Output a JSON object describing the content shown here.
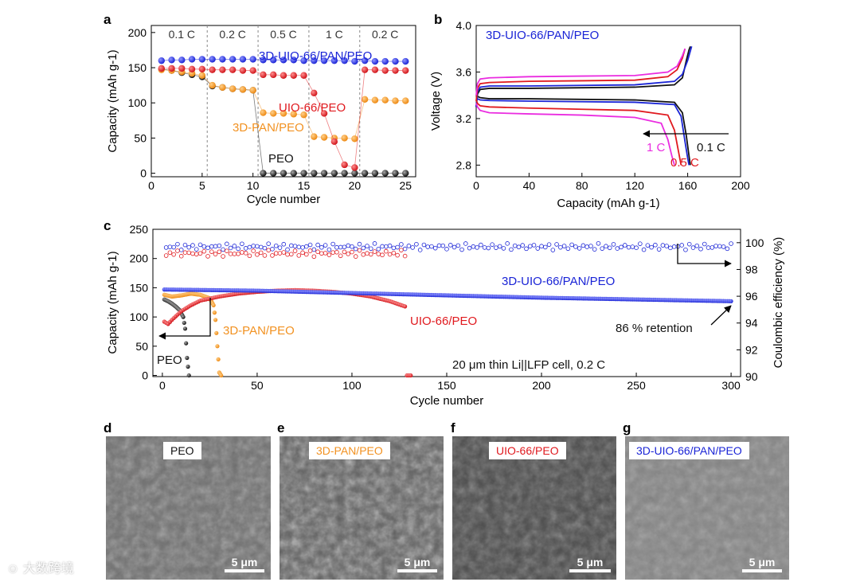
{
  "panel_letters": {
    "a": "a",
    "b": "b",
    "c": "c",
    "d": "d",
    "e": "e",
    "f": "f",
    "g": "g"
  },
  "colors": {
    "blue": "#1a24d6",
    "red": "#e0191e",
    "orange": "#f29222",
    "black": "#111111",
    "magenta": "#ea2ce0"
  },
  "watermark": "大数跨境",
  "chart_data": [
    {
      "id": "a",
      "type": "scatter",
      "xlabel": "Cycle number",
      "ylabel": "Capacity (mAh g-1)",
      "xlim": [
        0,
        26
      ],
      "ylim": [
        -5,
        210
      ],
      "xticks": [
        0,
        5,
        10,
        15,
        20,
        25
      ],
      "yticks": [
        0,
        50,
        100,
        150,
        200
      ],
      "rate_labels": [
        "0.1 C",
        "0.2 C",
        "0.5 C",
        "1 C",
        "0.2 C"
      ],
      "rate_dividers": [
        5.5,
        10.5,
        15.5,
        20.5
      ],
      "series": [
        {
          "name": "3D-UIO-66/PAN/PEO",
          "color": "blue",
          "x": [
            1,
            2,
            3,
            4,
            5,
            6,
            7,
            8,
            9,
            10,
            11,
            12,
            13,
            14,
            15,
            16,
            17,
            18,
            19,
            20,
            21,
            22,
            23,
            24,
            25
          ],
          "values": [
            160,
            161,
            161,
            162,
            162,
            162,
            162,
            162,
            162,
            162,
            161,
            161,
            161,
            161,
            160,
            160,
            160,
            160,
            160,
            159,
            160,
            159,
            159,
            159,
            159
          ]
        },
        {
          "name": "UIO-66/PEO",
          "color": "red",
          "x": [
            1,
            2,
            3,
            4,
            5,
            6,
            7,
            8,
            9,
            10,
            11,
            12,
            13,
            14,
            15,
            16,
            17,
            18,
            19,
            20,
            21,
            22,
            23,
            24,
            25
          ],
          "values": [
            149,
            149,
            149,
            148,
            148,
            147,
            147,
            147,
            146,
            146,
            140,
            140,
            139,
            139,
            139,
            114,
            85,
            45,
            12,
            8,
            147,
            147,
            146,
            146,
            146
          ]
        },
        {
          "name": "3D-PAN/PEO",
          "color": "orange",
          "x": [
            1,
            2,
            3,
            4,
            5,
            6,
            7,
            8,
            9,
            10,
            11,
            12,
            13,
            14,
            15,
            16,
            17,
            18,
            19,
            20,
            21,
            22,
            23,
            24,
            25
          ],
          "values": [
            147,
            146,
            144,
            142,
            139,
            125,
            122,
            120,
            119,
            118,
            86,
            85,
            85,
            84,
            83,
            52,
            51,
            50,
            50,
            49,
            105,
            104,
            104,
            103,
            103
          ]
        },
        {
          "name": "PEO",
          "color": "black",
          "x": [
            1,
            2,
            3,
            4,
            5,
            6,
            7,
            8,
            9,
            10,
            11,
            12,
            13,
            14,
            15,
            16,
            17,
            18,
            19,
            20,
            21,
            22,
            23,
            24,
            25
          ],
          "values": [
            148,
            146,
            143,
            140,
            137,
            124,
            122,
            120,
            119,
            118,
            0,
            0,
            0,
            0,
            0,
            0,
            0,
            0,
            0,
            0,
            0,
            0,
            0,
            0,
            0
          ]
        }
      ]
    },
    {
      "id": "b",
      "type": "line",
      "xlabel": "Capacity (mAh g-1)",
      "ylabel": "Voltage (V)",
      "xlim": [
        0,
        200
      ],
      "ylim": [
        2.7,
        4.0
      ],
      "xticks": [
        0,
        40,
        80,
        120,
        160,
        200
      ],
      "yticks": [
        2.8,
        3.2,
        3.6,
        4.0
      ],
      "title": "3D-UIO-66/PAN/PEO",
      "rate_labels": [
        "0.1 C",
        "0.5 C",
        "1 C"
      ],
      "series": [
        {
          "name": "0.1 C",
          "color": "black",
          "charge": {
            "x": [
              0,
              1,
              3,
              10,
              40,
              80,
              120,
              150,
              156,
              159,
              161,
              162
            ],
            "values": [
              3.3,
              3.41,
              3.45,
              3.46,
              3.46,
              3.465,
              3.47,
              3.49,
              3.55,
              3.7,
              3.79,
              3.82
            ]
          },
          "discharge": {
            "x": [
              0,
              1,
              3,
              10,
              40,
              80,
              120,
              150,
              156,
              159,
              161,
              162
            ],
            "values": [
              3.4,
              3.39,
              3.38,
              3.37,
              3.37,
              3.365,
              3.36,
              3.34,
              3.25,
              3.05,
              2.88,
              2.8
            ]
          }
        },
        {
          "name": "0.1 C (blue)",
          "color": "blue",
          "charge": {
            "x": [
              0,
              1,
              3,
              10,
              40,
              80,
              120,
              150,
              156,
              160,
              162,
              163
            ],
            "values": [
              3.3,
              3.43,
              3.47,
              3.48,
              3.48,
              3.485,
              3.49,
              3.52,
              3.58,
              3.7,
              3.78,
              3.82
            ]
          },
          "discharge": {
            "x": [
              0,
              1,
              3,
              10,
              40,
              80,
              120,
              150,
              155,
              158,
              160,
              161
            ],
            "values": [
              3.38,
              3.37,
              3.36,
              3.355,
              3.35,
              3.345,
              3.34,
              3.32,
              3.22,
              3.0,
              2.86,
              2.8
            ]
          }
        },
        {
          "name": "0.5 C",
          "color": "red",
          "charge": {
            "x": [
              0,
              1,
              3,
              10,
              40,
              80,
              120,
              145,
              152,
              156,
              158
            ],
            "values": [
              3.35,
              3.46,
              3.5,
              3.51,
              3.52,
              3.525,
              3.53,
              3.56,
              3.62,
              3.72,
              3.8
            ]
          },
          "discharge": {
            "x": [
              0,
              1,
              3,
              10,
              40,
              80,
              120,
              145,
              150,
              153,
              155
            ],
            "values": [
              3.36,
              3.33,
              3.31,
              3.3,
              3.29,
              3.28,
              3.27,
              3.23,
              3.1,
              2.92,
              2.8
            ]
          }
        },
        {
          "name": "1 C",
          "color": "magenta",
          "charge": {
            "x": [
              0,
              1,
              3,
              10,
              40,
              80,
              120,
              145,
              152,
              156,
              158
            ],
            "values": [
              3.4,
              3.5,
              3.54,
              3.55,
              3.56,
              3.565,
              3.57,
              3.6,
              3.65,
              3.74,
              3.8
            ]
          },
          "discharge": {
            "x": [
              0,
              1,
              3,
              10,
              40,
              80,
              120,
              140,
              145,
              148,
              150
            ],
            "values": [
              3.33,
              3.3,
              3.27,
              3.25,
              3.24,
              3.23,
              3.21,
              3.16,
              3.02,
              2.88,
              2.8
            ]
          }
        }
      ]
    },
    {
      "id": "c",
      "type": "scatter",
      "xlabel": "Cycle number",
      "ylabel": "Capacity (mAh g-1)",
      "ylabel2": "Coulombic efficiency (%)",
      "xlim": [
        -5,
        305
      ],
      "ylim": [
        -2,
        250
      ],
      "ylim2": [
        90,
        101
      ],
      "xticks": [
        0,
        50,
        100,
        150,
        200,
        250,
        300
      ],
      "yticks": [
        0,
        50,
        100,
        150,
        200,
        250
      ],
      "yticks2": [
        90,
        92,
        94,
        96,
        98,
        100
      ],
      "annotations": [
        "86 % retention",
        "20 μm thin Li||LFP cell, 0.2 C"
      ],
      "series": [
        {
          "name": "3D-UIO-66/PAN/PEO",
          "color": "blue",
          "capacity": {
            "x": [
              1,
              50,
              100,
              150,
              200,
              250,
              300
            ],
            "values": [
              147,
              145,
              141,
              137,
              133,
              130,
              127
            ]
          },
          "ce_mean": 99.7
        },
        {
          "name": "UIO-66/PEO",
          "color": "red",
          "capacity": {
            "x": [
              1,
              3,
              5,
              10,
              15,
              20,
              30,
              40,
              50,
              60,
              70,
              80,
              90,
              100,
              110,
              120,
              128,
              129,
              130,
              131
            ],
            "values": [
              92,
              88,
              95,
              110,
              120,
              128,
              135,
              140,
              143,
              145,
              146,
              145,
              143,
              140,
              135,
              127,
              118,
              0,
              0,
              0
            ]
          },
          "ce_mean": 99.2
        },
        {
          "name": "3D-PAN/PEO",
          "color": "orange",
          "capacity": {
            "x": [
              1,
              5,
              10,
              15,
              20,
              25,
              27,
              28,
              29,
              30,
              31
            ],
            "values": [
              138,
              135,
              137,
              140,
              138,
              132,
              120,
              95,
              50,
              5,
              0
            ]
          }
        },
        {
          "name": "PEO",
          "color": "black",
          "capacity": {
            "x": [
              1,
              3,
              5,
              7,
              9,
              11,
              12,
              13,
              14
            ],
            "values": [
              130,
              127,
              123,
              118,
              112,
              100,
              80,
              30,
              0
            ]
          }
        }
      ]
    }
  ],
  "sem_panels": [
    {
      "letter": "d",
      "label": "PEO",
      "label_color": "black",
      "scale": "5 μm"
    },
    {
      "letter": "e",
      "label": "3D-PAN/PEO",
      "label_color": "orange",
      "scale": "5 μm"
    },
    {
      "letter": "f",
      "label": "UIO-66/PEO",
      "label_color": "red",
      "scale": "5 μm"
    },
    {
      "letter": "g",
      "label": "3D-UIO-66/PAN/PEO",
      "label_color": "blue",
      "scale": "5 μm"
    }
  ]
}
